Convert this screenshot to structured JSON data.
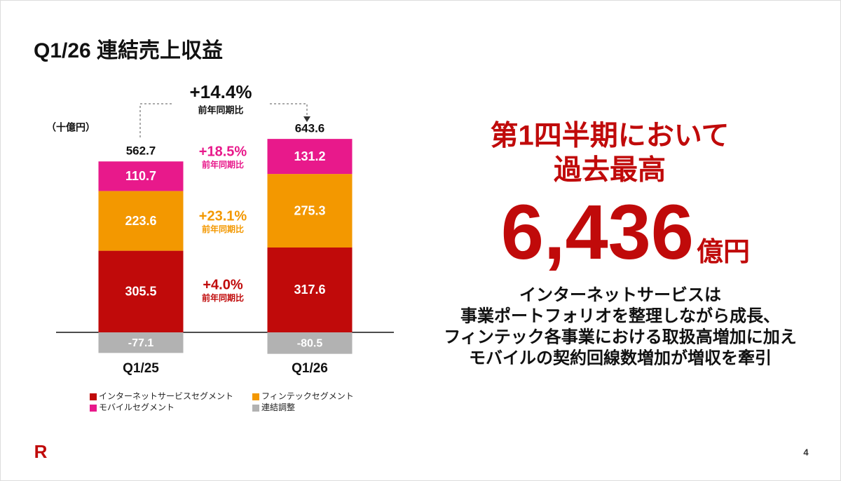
{
  "header": {
    "title": "Q1/26 連結売上収益"
  },
  "chart_data": {
    "type": "stacked-bar",
    "unit_label": "（十億円）",
    "categories": [
      "Q1/25",
      "Q1/26"
    ],
    "series": [
      {
        "name": "インターネットサービスセグメント",
        "color": "#c00a0a",
        "values": [
          305.5,
          317.6
        ]
      },
      {
        "name": "フィンテックセグメント",
        "color": "#f39800",
        "values": [
          223.6,
          275.3
        ]
      },
      {
        "name": "モバイルセグメント",
        "color": "#e8198b",
        "values": [
          110.7,
          131.2
        ]
      },
      {
        "name": "連結調整",
        "color": "#b2b2b2",
        "values": [
          -77.1,
          -80.5
        ]
      }
    ],
    "totals": [
      562.7,
      643.6
    ],
    "total_growth": {
      "value": 14.4,
      "label": "+14.4%",
      "note": "前年同期比"
    },
    "growth": {
      "values": [
        4.0,
        23.1,
        18.5
      ],
      "value_labels": [
        "+4.0%",
        "+23.1%",
        "+18.5%"
      ],
      "note": "前年同期比"
    }
  },
  "highlight": {
    "lines": [
      "第1四半期において",
      "過去最高"
    ],
    "number": "6,436",
    "unit": "億円",
    "description": [
      "インターネットサービスは",
      "事業ポートフォリオを整理しながら成長、",
      "フィンテック各事業における取扱高増加に加え",
      "モバイルの契約回線数増加が増収を牽引"
    ]
  },
  "footer": {
    "logo": "R",
    "page": "4"
  }
}
